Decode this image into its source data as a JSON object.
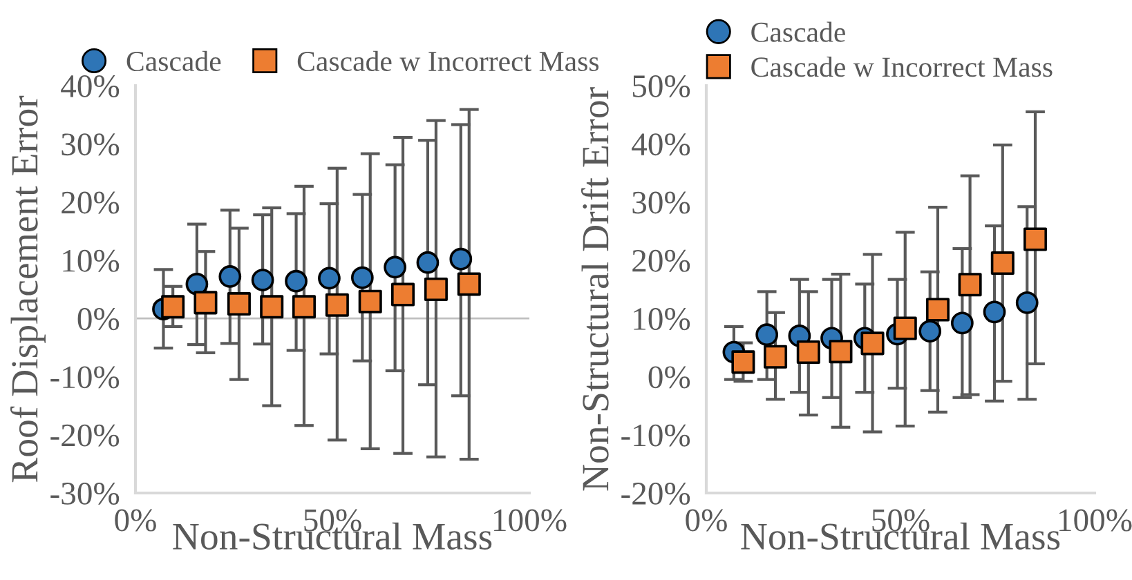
{
  "chart_data": [
    {
      "type": "scatter",
      "xlabel": "Non-Structural Mass",
      "ylabel": "Roof Displacement Error",
      "xlim": [
        0,
        100
      ],
      "xticks": [
        {
          "value": 0,
          "label": "0%"
        },
        {
          "value": 50,
          "label": "50%"
        },
        {
          "value": 100,
          "label": "100%"
        }
      ],
      "ylim": [
        -30,
        40
      ],
      "yticks": [
        {
          "value": -30,
          "label": "-30%"
        },
        {
          "value": -20,
          "label": "-20%"
        },
        {
          "value": -10,
          "label": "-10%"
        },
        {
          "value": 0,
          "label": "0%"
        },
        {
          "value": 10,
          "label": "10%"
        },
        {
          "value": 20,
          "label": "20%"
        },
        {
          "value": 30,
          "label": "30%"
        },
        {
          "value": 40,
          "label": "40%"
        }
      ],
      "grid": false,
      "legend": "top",
      "ref_lines": [
        {
          "axis": "y",
          "value": 0,
          "color": "#bfbfbf"
        }
      ],
      "series": [
        {
          "name": "Cascade",
          "color": "#2e75b6",
          "marker": "circle",
          "x": [
            7.1,
            15.6,
            24.0,
            32.3,
            40.8,
            49.2,
            57.6,
            65.9,
            74.2,
            82.6
          ],
          "values": [
            1.6,
            5.9,
            7.2,
            6.6,
            6.4,
            6.9,
            7.0,
            8.8,
            9.6,
            10.2
          ],
          "errors": [
            [
              -5.1,
              8.4
            ],
            [
              -4.5,
              16.2
            ],
            [
              -4.3,
              18.6
            ],
            [
              -4.4,
              17.8
            ],
            [
              -5.5,
              18.0
            ],
            [
              -6.1,
              19.7
            ],
            [
              -7.3,
              21.3
            ],
            [
              -9.0,
              26.4
            ],
            [
              -11.4,
              30.6
            ],
            [
              -13.3,
              33.3
            ]
          ]
        },
        {
          "name": "Cascade w Incorrect Mass",
          "color": "#ed7d31",
          "marker": "square",
          "x": [
            9.5,
            17.8,
            26.3,
            34.6,
            42.8,
            51.2,
            59.6,
            67.9,
            76.3,
            84.7
          ],
          "values": [
            2.0,
            2.7,
            2.5,
            2.0,
            2.0,
            2.3,
            2.9,
            4.1,
            5.0,
            5.9
          ],
          "errors": [
            [
              -1.4,
              5.5
            ],
            [
              -5.9,
              11.5
            ],
            [
              -10.5,
              15.5
            ],
            [
              -15.0,
              19.0
            ],
            [
              -18.4,
              22.7
            ],
            [
              -20.9,
              25.8
            ],
            [
              -22.4,
              28.3
            ],
            [
              -23.2,
              31.1
            ],
            [
              -23.8,
              34.0
            ],
            [
              -24.2,
              35.9
            ]
          ]
        }
      ]
    },
    {
      "type": "scatter",
      "xlabel": "Non-Structural Mass",
      "ylabel": "Non-Structural Drift Error",
      "xlim": [
        0,
        100
      ],
      "xticks": [
        {
          "value": 0,
          "label": "0%"
        },
        {
          "value": 50,
          "label": "50%"
        },
        {
          "value": 100,
          "label": "100%"
        }
      ],
      "ylim": [
        -20,
        50
      ],
      "yticks": [
        {
          "value": -20,
          "label": "-20%"
        },
        {
          "value": -10,
          "label": "-10%"
        },
        {
          "value": 0,
          "label": "0%"
        },
        {
          "value": 10,
          "label": "10%"
        },
        {
          "value": 20,
          "label": "20%"
        },
        {
          "value": 30,
          "label": "30%"
        },
        {
          "value": 40,
          "label": "40%"
        },
        {
          "value": 50,
          "label": "50%"
        }
      ],
      "grid": false,
      "legend": "top left",
      "series": [
        {
          "name": "Cascade",
          "color": "#2e75b6",
          "marker": "circle",
          "x": [
            7.1,
            15.6,
            24.0,
            32.3,
            40.8,
            49.2,
            57.6,
            65.9,
            74.2,
            82.6
          ],
          "values": [
            4.2,
            7.2,
            7.0,
            6.6,
            6.6,
            7.3,
            7.8,
            9.2,
            11.1,
            12.7
          ],
          "errors": [
            [
              -0.5,
              8.6
            ],
            [
              -0.5,
              14.6
            ],
            [
              -2.7,
              16.7
            ],
            [
              -3.6,
              16.7
            ],
            [
              -2.7,
              15.9
            ],
            [
              -2.0,
              16.7
            ],
            [
              -2.4,
              18.0
            ],
            [
              -3.6,
              22.0
            ],
            [
              -4.2,
              25.9
            ],
            [
              -3.9,
              29.2
            ]
          ]
        },
        {
          "name": "Cascade w Incorrect Mass",
          "color": "#ed7d31",
          "marker": "square",
          "x": [
            9.5,
            17.8,
            26.3,
            34.6,
            42.8,
            51.2,
            59.6,
            67.9,
            76.3,
            84.7
          ],
          "values": [
            2.5,
            3.4,
            4.2,
            4.3,
            5.7,
            8.3,
            11.5,
            15.8,
            19.5,
            23.6
          ],
          "errors": [
            [
              -0.8,
              5.8
            ],
            [
              -3.9,
              11.0
            ],
            [
              -6.6,
              14.6
            ],
            [
              -8.7,
              17.6
            ],
            [
              -9.5,
              21.0
            ],
            [
              -8.5,
              24.8
            ],
            [
              -6.1,
              29.1
            ],
            [
              -3.1,
              34.5
            ],
            [
              -0.8,
              39.8
            ],
            [
              2.2,
              45.5
            ]
          ]
        }
      ]
    }
  ]
}
